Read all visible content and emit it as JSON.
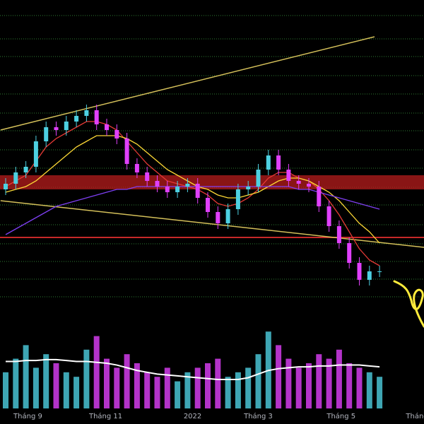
{
  "chart_data": {
    "type": "candlestick",
    "open": [
      43,
      45,
      49,
      51,
      60,
      65,
      64,
      67,
      69,
      71,
      66,
      64,
      61,
      52,
      49,
      46,
      44,
      42,
      44,
      45,
      40,
      35,
      31,
      36,
      43,
      44,
      50,
      55,
      50,
      46,
      45,
      44,
      37,
      30,
      24,
      17,
      11,
      14
    ],
    "high": [
      47,
      51,
      53,
      62,
      67,
      67,
      69,
      71,
      73,
      73,
      68,
      66,
      63,
      54,
      51,
      48,
      46,
      46,
      47,
      47,
      42,
      37,
      38,
      45,
      46,
      52,
      57,
      57,
      52,
      48,
      47,
      46,
      39,
      32,
      26,
      19,
      16,
      16
    ],
    "low": [
      41,
      43,
      47,
      49,
      58,
      62,
      62,
      65,
      67,
      64,
      62,
      59,
      50,
      47,
      44,
      42,
      40,
      40,
      42,
      38,
      33,
      29,
      29,
      34,
      41,
      42,
      48,
      48,
      44,
      43,
      42,
      35,
      28,
      22,
      15,
      9,
      9,
      12
    ],
    "close": [
      45,
      49,
      51,
      60,
      65,
      64,
      67,
      69,
      71,
      66,
      64,
      61,
      52,
      49,
      46,
      44,
      42,
      44,
      45,
      40,
      35,
      31,
      36,
      43,
      44,
      50,
      55,
      50,
      46,
      45,
      44,
      37,
      30,
      24,
      17,
      11,
      14,
      14
    ],
    "up_color": "#4dd0e1",
    "down_color": "#e040fb",
    "ylim": [
      0,
      110
    ],
    "gridlines": [
      104.5,
      96.25,
      90,
      83.25,
      76.75,
      70,
      63.75,
      57,
      50.5,
      43.75,
      37.5,
      30.5,
      23.75,
      17.5,
      11.25,
      5
    ],
    "grid_color": "#2e7d32",
    "moving_averages": [
      {
        "color": "#e53935",
        "values": [
          44,
          46,
          48,
          53,
          58,
          61,
          63,
          65,
          67,
          67,
          66,
          64,
          60,
          56,
          52,
          49,
          46,
          45,
          44,
          43,
          41,
          38,
          37,
          38,
          40,
          43,
          47,
          49,
          49,
          47,
          46,
          43,
          39,
          34,
          28,
          22,
          18,
          16
        ]
      },
      {
        "color": "#fdd835",
        "values": [
          42,
          43,
          44,
          46,
          49,
          52,
          55,
          58,
          60,
          62,
          62,
          62,
          61,
          59,
          56,
          53,
          50,
          48,
          46,
          44,
          43,
          41,
          40,
          40,
          41,
          42,
          44,
          46,
          47,
          47,
          46,
          44,
          42,
          39,
          35,
          31,
          28,
          24
        ]
      },
      {
        "color": "#7e3ff2",
        "values": [
          27,
          29,
          31,
          33,
          35,
          37,
          38,
          39,
          40,
          41,
          42,
          43,
          43,
          44,
          44,
          44,
          44,
          44,
          44,
          44,
          44,
          44,
          44,
          44,
          44,
          44,
          44,
          44,
          44,
          43,
          43,
          42,
          41,
          40,
          39,
          38,
          37,
          36
        ]
      }
    ],
    "trendlines": [
      {
        "color": "#d4c05a",
        "x": [
          -0.5,
          36.5
        ],
        "values": [
          64,
          97
        ]
      },
      {
        "color": "#d4c05a",
        "x": [
          -0.5,
          41.4
        ],
        "values": [
          39,
          22.5
        ]
      }
    ],
    "zones": [
      {
        "range": [
          43,
          48
        ],
        "color": "#b71c1c"
      }
    ],
    "hlines": [
      {
        "value": 26,
        "color": "#c62828"
      }
    ],
    "volume": [
      40,
      55,
      70,
      45,
      60,
      50,
      40,
      35,
      65,
      80,
      55,
      45,
      60,
      50,
      40,
      35,
      45,
      30,
      40,
      45,
      50,
      55,
      35,
      40,
      45,
      60,
      85,
      70,
      55,
      45,
      50,
      60,
      55,
      65,
      50,
      45,
      40,
      35
    ],
    "volume_ma": [
      52,
      52,
      53,
      53,
      54,
      54,
      53,
      52,
      52,
      51,
      50,
      48,
      45,
      42,
      40,
      38,
      37,
      36,
      35,
      34,
      33,
      32,
      32,
      32,
      34,
      38,
      42,
      44,
      45,
      46,
      46,
      47,
      47,
      48,
      48,
      48,
      47,
      46
    ],
    "volume_ylim": [
      0,
      100
    ],
    "xticks": [
      {
        "value": 2.2,
        "label": "Tháng 9"
      },
      {
        "value": 9.9,
        "label": "Tháng 11"
      },
      {
        "value": 18.5,
        "label": "2022"
      },
      {
        "value": 25,
        "label": "Tháng 3"
      },
      {
        "value": 33.2,
        "label": "Tháng 5"
      },
      {
        "value": 40.7,
        "label": "Tháng"
      }
    ]
  }
}
